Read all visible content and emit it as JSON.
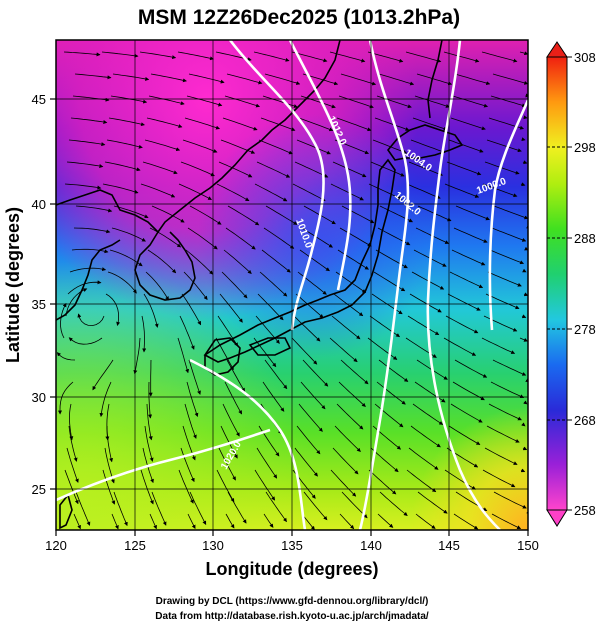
{
  "title": "MSM 12Z26Dec2025 (1013.2hPa)",
  "xlabel": "Longitude (degrees)",
  "ylabel": "Latitude  (degrees)",
  "x_ticks": [
    "120",
    "125",
    "130",
    "135",
    "140",
    "145",
    "150"
  ],
  "y_ticks": [
    "25",
    "30",
    "35",
    "40",
    "45"
  ],
  "colorbar_ticks": [
    "308",
    "298",
    "288",
    "278",
    "268",
    "258"
  ],
  "colorbar_range": [
    258,
    308
  ],
  "isobar_labels": [
    "1012.0",
    "1004.0",
    "1002.0",
    "1000.0",
    "1010.0",
    "1020.0"
  ],
  "credits": {
    "line1": "Drawing by DCL (https://www.gfd-dennou.org/library/dcl/)",
    "line2": "Data from http://database.rish.kyoto-u.ac.jp/arch/jmadata/"
  },
  "map": {
    "lon_range": [
      120,
      150
    ],
    "lat_range": [
      22.5,
      48
    ]
  }
}
